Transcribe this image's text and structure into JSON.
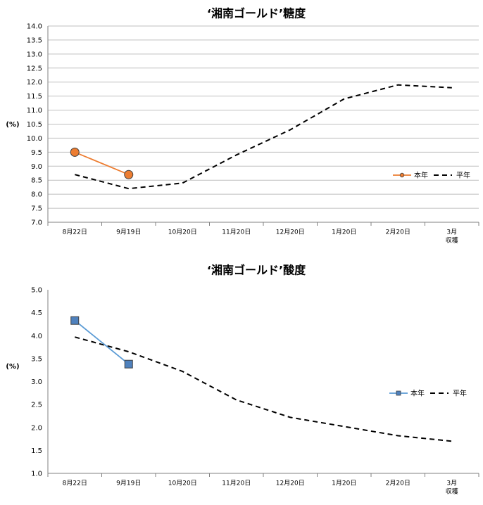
{
  "chart_data": [
    {
      "type": "line",
      "title": "‘湘南ゴールド’糖度",
      "ylabel": "(%)",
      "xlabel": "",
      "categories": [
        [
          "8月22日"
        ],
        [
          "9月19日"
        ],
        [
          "10月20日"
        ],
        [
          "11月20日"
        ],
        [
          "12月20日"
        ],
        [
          "1月20日"
        ],
        [
          "2月20日"
        ],
        [
          "3月",
          "収穫"
        ]
      ],
      "ylim": [
        7.0,
        14.0
      ],
      "ystep": 0.5,
      "grid": true,
      "legend_position": "right",
      "series": [
        {
          "name": "本年",
          "values": [
            9.5,
            8.7,
            null,
            null,
            null,
            null,
            null,
            null
          ],
          "color": "#ed7d31",
          "marker": "circle",
          "marker_fill": "#ed7d31",
          "dashed": false
        },
        {
          "name": "平年",
          "values": [
            8.7,
            8.2,
            8.4,
            9.4,
            10.3,
            11.4,
            11.9,
            11.8
          ],
          "color": "#000000",
          "marker": "none",
          "dashed": true
        }
      ]
    },
    {
      "type": "line",
      "title": "‘湘南ゴールド’酸度",
      "ylabel": "(%)",
      "xlabel": "",
      "categories": [
        [
          "8月22日"
        ],
        [
          "9月19日"
        ],
        [
          "10月20日"
        ],
        [
          "11月20日"
        ],
        [
          "12月20日"
        ],
        [
          "1月20日"
        ],
        [
          "2月20日"
        ],
        [
          "3月",
          "収穫"
        ]
      ],
      "ylim": [
        1.0,
        5.0
      ],
      "ystep": 0.5,
      "grid": false,
      "legend_position": "right",
      "series": [
        {
          "name": "本年",
          "values": [
            4.33,
            3.38,
            null,
            null,
            null,
            null,
            null,
            null
          ],
          "color": "#5b9bd5",
          "marker": "square",
          "marker_fill": "#4f81bd",
          "dashed": false
        },
        {
          "name": "平年",
          "values": [
            3.97,
            3.65,
            3.22,
            2.6,
            2.22,
            2.02,
            1.82,
            1.7
          ],
          "color": "#000000",
          "marker": "none",
          "dashed": true
        }
      ]
    }
  ]
}
